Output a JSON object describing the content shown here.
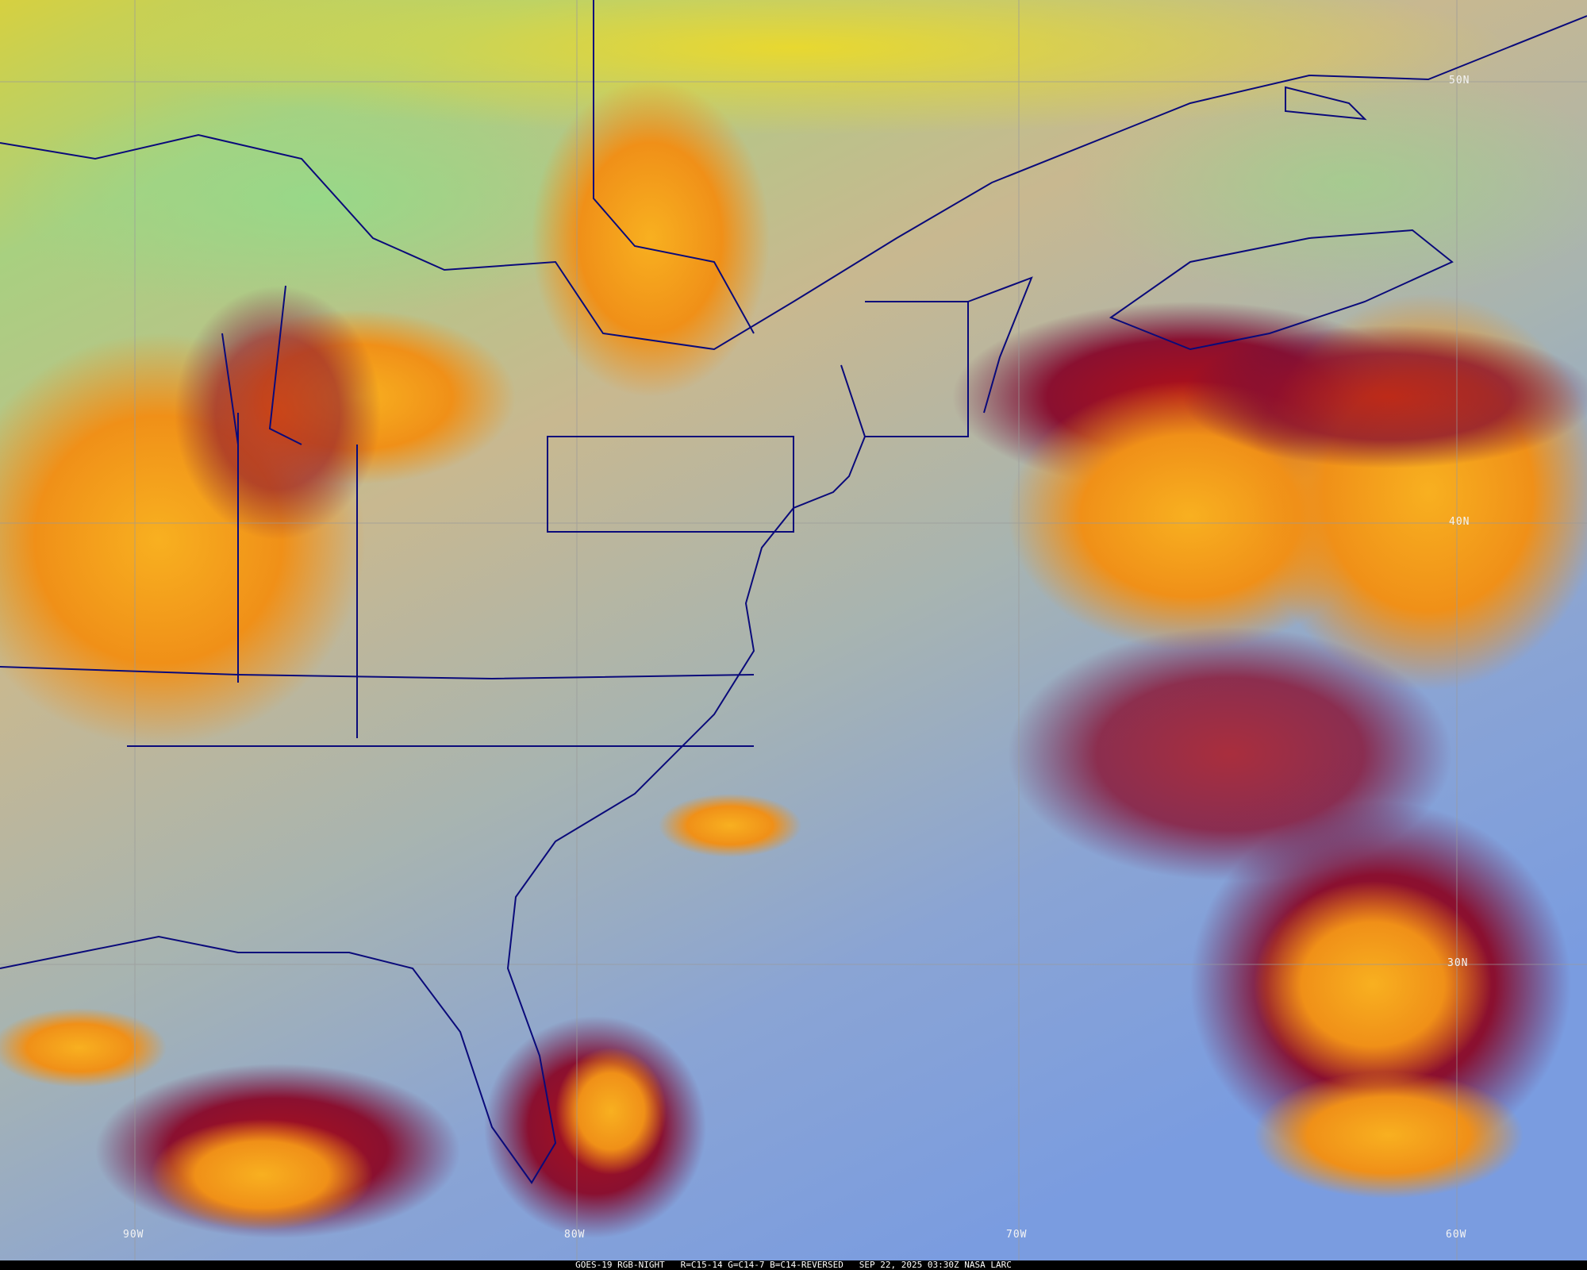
{
  "caption": {
    "satellite": "GOES-19",
    "product": "RGB-NIGHT",
    "channels": "R=C15-14 G=C14-7 B=C14-REVERSED",
    "datetime": "SEP 22, 2025 03:30Z",
    "credit": "NASA LARC"
  },
  "grid": {
    "latitudes": [
      "50N",
      "40N",
      "30N"
    ],
    "longitudes": [
      "90W",
      "80W",
      "70W",
      "60W"
    ]
  },
  "colors": {
    "border_lines": "#0a0a7a",
    "grid_lines": "#9a9a9a",
    "clear_ocean": "#7fa0d8",
    "high_cloud": "#f0a020",
    "mid_cloud": "#a01020",
    "land_clear": "#c8c090"
  }
}
